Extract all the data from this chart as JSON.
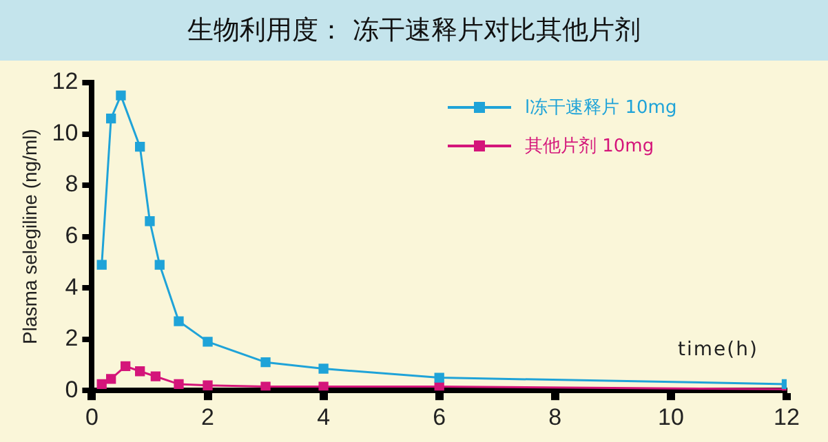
{
  "chart_data": {
    "type": "line",
    "title": "生物利用度：  冻干速释片对比其他片剂",
    "xlabel": "time(h)",
    "ylabel": "Plasma selegiline (ng/ml)",
    "xlim": [
      0,
      12
    ],
    "xticks": [
      0,
      2,
      4,
      6,
      8,
      10,
      12
    ],
    "ylim": [
      0,
      12
    ],
    "yticks": [
      0,
      2,
      4,
      6,
      8,
      10,
      12
    ],
    "grid": false,
    "legend": "top right",
    "marker": "square",
    "line_style": "solid",
    "series": [
      {
        "name": "l冻干速释片 10mg",
        "color": "#1fa3d8",
        "x": [
          0.17,
          0.33,
          0.5,
          0.83,
          1,
          1.17,
          1.5,
          2,
          3,
          4,
          6,
          12
        ],
        "values": [
          4.9,
          10.6,
          11.5,
          9.5,
          6.6,
          4.9,
          2.7,
          1.9,
          1.1,
          0.85,
          0.5,
          0.25
        ]
      },
      {
        "name": "其他片剂 10mg",
        "color": "#d4157a",
        "x": [
          0.17,
          0.33,
          0.58,
          0.83,
          1.1,
          1.5,
          2,
          3,
          4,
          6,
          12
        ],
        "values": [
          0.25,
          0.45,
          0.95,
          0.75,
          0.55,
          0.25,
          0.2,
          0.15,
          0.15,
          0.15,
          0.05
        ]
      }
    ]
  }
}
